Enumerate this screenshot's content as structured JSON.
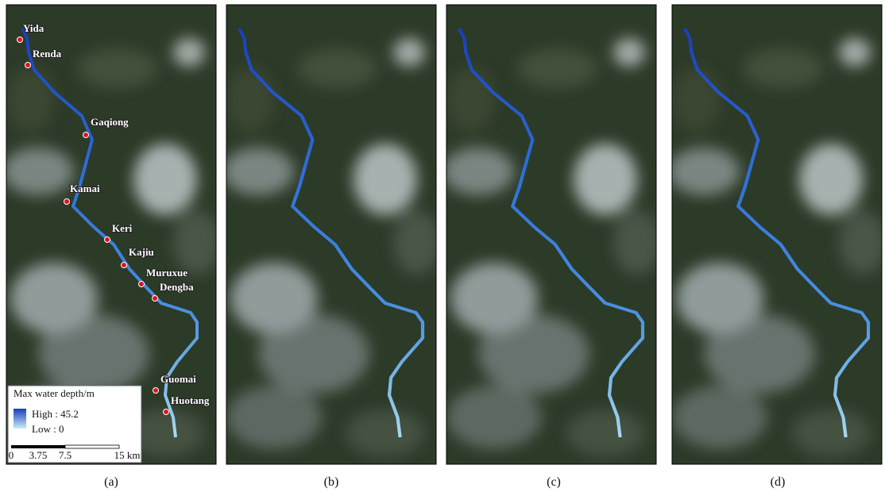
{
  "panels": [
    {
      "label": "(a)",
      "places": [
        "Yida",
        "Renda",
        "Gaqiong",
        "Kamai",
        "Keri",
        "Kajiu",
        "Muruxue",
        "Dengba",
        "Guomai",
        "Huotang"
      ],
      "legend": {
        "title": "Max water depth/m",
        "high": "High : 45.2",
        "low": "Low : 0"
      },
      "scale_bar": [
        "0",
        "3.75",
        "7.5",
        "15 km"
      ]
    },
    {
      "label": "(b)"
    },
    {
      "label": "(c)"
    },
    {
      "label": "(d)"
    }
  ]
}
